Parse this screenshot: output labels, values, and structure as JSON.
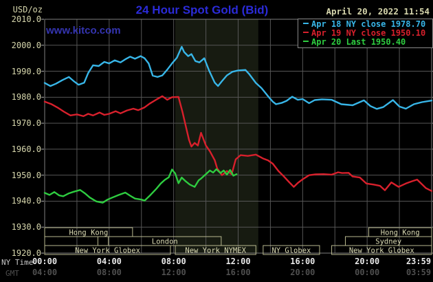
{
  "header": {
    "title": "24 Hour Spot Gold (Bid)",
    "datetime": "April 20, 2022 11:54",
    "watermark": "www.kitco.com"
  },
  "colors": {
    "background": "#000000",
    "title_blue": "#2b2bd8",
    "watermark_blue": "#3434b0",
    "axis_khaki": "#d6d6ac",
    "ny_tick_text": "#e8e8e8",
    "gmt_tick_text": "#4f4f4f",
    "axis_side_text": "#c8c8c8",
    "grid": "#565656",
    "frame": "#808080",
    "tick_mark": "#b0b0b0",
    "session_border": "#b9b98f",
    "session_text": "#dcdcb4",
    "nymex_band": "#171b11",
    "legend_border": "#8a8a8a",
    "apr18_cyan": "#38b6e8",
    "apr19_red": "#d8202c",
    "apr20_green": "#2ecc40"
  },
  "legend": {
    "entries": [
      {
        "text": "Apr 18 NY close 1978.70",
        "color": "#38b6e8"
      },
      {
        "text": "Apr 19 NY close 1950.10",
        "color": "#d8202c"
      },
      {
        "text": "Apr 20 Last 1950.40",
        "color": "#2ecc40"
      }
    ]
  },
  "y_axis": {
    "unit": "USD/oz",
    "ticks": [
      "2010.0",
      "2000.0",
      "1990.0",
      "1980.0",
      "1970.0",
      "1960.0",
      "1950.0",
      "1940.0",
      "1930.0",
      "1920.0"
    ]
  },
  "x_axis": {
    "ny_label": "NY Time",
    "gmt_label": "GMT",
    "ticks": [
      {
        "h": 0,
        "ny": "00:00",
        "gmt": "04:00"
      },
      {
        "h": 4,
        "ny": "04:00",
        "gmt": "08:00"
      },
      {
        "h": 8,
        "ny": "08:00",
        "gmt": "12:00"
      },
      {
        "h": 12,
        "ny": "12:00",
        "gmt": "16:00"
      },
      {
        "h": 16,
        "ny": "16:00",
        "gmt": "20:00"
      },
      {
        "h": 20,
        "ny": "20:00",
        "gmt": "00:00"
      },
      {
        "h": 24,
        "ny": "23:59",
        "gmt": "03:59"
      }
    ]
  },
  "sessions": {
    "rows": [
      [
        {
          "label": "Hong Kong",
          "start_h": 0,
          "end_h": 5.45
        },
        {
          "label": "Hong Kong",
          "start_h": 20.1,
          "end_h": 24
        }
      ],
      [
        {
          "label": "",
          "start_h": 0,
          "end_h": 3.3
        },
        {
          "label": "London",
          "start_h": 3.95,
          "end_h": 10.95
        },
        {
          "label": "Sydney",
          "start_h": 18.65,
          "end_h": 24
        }
      ],
      [
        {
          "label": "New York Globex",
          "start_h": 0,
          "end_h": 7.8
        },
        {
          "label": "New York NYMEX",
          "start_h": 8.1,
          "end_h": 13.1
        },
        {
          "label": "NY Globex",
          "start_h": 13.55,
          "end_h": 17.05
        },
        {
          "label": "New York Globex",
          "start_h": 17.8,
          "end_h": 24
        }
      ]
    ]
  },
  "chart_data": {
    "type": "line",
    "title": "24 Hour Spot Gold (Bid)",
    "xlabel": "NY Time",
    "ylabel": "USD/oz",
    "xlim": [
      0,
      24
    ],
    "ylim": [
      1920,
      2010
    ],
    "y_tick_values": [
      2010,
      2000,
      1990,
      1980,
      1970,
      1960,
      1950,
      1940,
      1930,
      1920
    ],
    "x_gridline_step_h": 2,
    "grid": true,
    "legend_position": "top-right",
    "nymex_band": {
      "start_h": 8.1,
      "end_h": 13.25
    },
    "series": [
      {
        "name": "Apr 18",
        "close": 1978.7,
        "color": "#38b6e8",
        "x": [
          0,
          0.35,
          0.7,
          1.1,
          1.5,
          1.8,
          2.1,
          2.45,
          2.7,
          3.0,
          3.35,
          3.7,
          4.0,
          4.35,
          4.7,
          5.0,
          5.3,
          5.6,
          5.95,
          6.2,
          6.45,
          6.7,
          7.0,
          7.3,
          7.6,
          7.9,
          8.2,
          8.5,
          8.65,
          8.9,
          9.1,
          9.35,
          9.6,
          9.9,
          10.2,
          10.55,
          10.75,
          11.0,
          11.3,
          11.65,
          12.0,
          12.45,
          12.7,
          13.1,
          13.45,
          13.85,
          14.15,
          14.35,
          14.7,
          15.0,
          15.35,
          15.7,
          16.0,
          16.4,
          16.75,
          17.2,
          17.8,
          18.4,
          19.1,
          19.8,
          20.2,
          20.6,
          21.0,
          21.6,
          22.0,
          22.4,
          22.9,
          23.4,
          24.0
        ],
        "values": [
          1985.5,
          1984.3,
          1985.2,
          1986.6,
          1987.8,
          1986.2,
          1984.8,
          1985.6,
          1989.3,
          1992.3,
          1992.0,
          1993.6,
          1993.0,
          1994.2,
          1993.4,
          1994.6,
          1995.6,
          1994.8,
          1995.8,
          1995.0,
          1993.0,
          1988.3,
          1987.8,
          1988.4,
          1990.6,
          1993.0,
          1995.2,
          1999.4,
          1997.4,
          1995.8,
          1996.6,
          1993.9,
          1993.4,
          1995.0,
          1990.2,
          1985.6,
          1984.3,
          1986.2,
          1988.4,
          1989.8,
          1990.3,
          1990.5,
          1988.8,
          1985.5,
          1983.5,
          1980.4,
          1978.3,
          1977.3,
          1977.8,
          1978.6,
          1980.2,
          1979.0,
          1979.3,
          1977.7,
          1978.9,
          1979.2,
          1979.0,
          1977.3,
          1976.9,
          1978.8,
          1976.6,
          1975.5,
          1976.2,
          1978.9,
          1976.4,
          1975.6,
          1977.3,
          1978.1,
          1978.7
        ]
      },
      {
        "name": "Apr 19",
        "close": 1950.1,
        "color": "#d8202c",
        "x": [
          0,
          0.4,
          0.8,
          1.2,
          1.6,
          2.0,
          2.4,
          2.7,
          3.0,
          3.4,
          3.7,
          4.0,
          4.4,
          4.7,
          5.1,
          5.5,
          5.8,
          6.2,
          6.5,
          6.9,
          7.3,
          7.6,
          7.9,
          8.3,
          8.55,
          8.75,
          8.95,
          9.1,
          9.3,
          9.5,
          9.7,
          10.0,
          10.25,
          10.55,
          10.7,
          11.0,
          11.3,
          11.6,
          11.85,
          12.15,
          12.6,
          13.1,
          13.55,
          13.85,
          14.15,
          14.5,
          14.85,
          15.15,
          15.45,
          15.7,
          16.0,
          16.4,
          16.8,
          17.3,
          17.8,
          18.2,
          18.45,
          18.85,
          19.1,
          19.55,
          19.95,
          20.4,
          20.8,
          21.1,
          21.5,
          21.95,
          22.4,
          22.8,
          23.1,
          23.4,
          23.65,
          24.0
        ],
        "values": [
          1978.3,
          1977.4,
          1976.0,
          1974.4,
          1973.0,
          1973.4,
          1972.7,
          1973.6,
          1973.0,
          1974.1,
          1973.2,
          1973.6,
          1974.6,
          1973.8,
          1974.9,
          1975.6,
          1975.0,
          1976.1,
          1977.5,
          1979.0,
          1980.4,
          1979.0,
          1980.0,
          1980.1,
          1974.2,
          1968.9,
          1963.6,
          1961.0,
          1962.4,
          1961.4,
          1966.3,
          1961.4,
          1959.2,
          1955.7,
          1952.6,
          1950.0,
          1951.6,
          1950.4,
          1956.1,
          1957.7,
          1957.4,
          1957.9,
          1956.4,
          1955.7,
          1954.4,
          1951.6,
          1949.4,
          1947.4,
          1945.5,
          1947.0,
          1948.4,
          1950.0,
          1950.3,
          1950.4,
          1950.2,
          1951.1,
          1950.8,
          1950.9,
          1949.5,
          1949.1,
          1946.8,
          1946.4,
          1945.9,
          1944.2,
          1947.2,
          1945.5,
          1946.8,
          1947.7,
          1948.3,
          1946.5,
          1945.0,
          1943.9
        ]
      },
      {
        "name": "Apr 20",
        "last": 1950.4,
        "color": "#2ecc40",
        "x": [
          0,
          0.3,
          0.6,
          0.9,
          1.15,
          1.5,
          1.8,
          2.2,
          2.5,
          2.8,
          3.2,
          3.6,
          3.9,
          4.2,
          4.6,
          5.0,
          5.3,
          5.6,
          6.0,
          6.2,
          6.5,
          6.9,
          7.2,
          7.45,
          7.7,
          7.9,
          8.1,
          8.3,
          8.5,
          8.75,
          9.0,
          9.3,
          9.55,
          9.7,
          10.0,
          10.25,
          10.45,
          10.65,
          10.9,
          11.1,
          11.3,
          11.5,
          11.7,
          11.9
        ],
        "values": [
          1943.2,
          1942.4,
          1943.5,
          1942.2,
          1941.9,
          1943.0,
          1943.6,
          1944.3,
          1943.0,
          1941.4,
          1939.9,
          1939.4,
          1940.6,
          1941.4,
          1942.4,
          1943.3,
          1942.1,
          1941.0,
          1940.6,
          1940.2,
          1942.0,
          1944.6,
          1946.8,
          1948.2,
          1949.2,
          1952.2,
          1950.6,
          1946.9,
          1949.1,
          1947.6,
          1946.4,
          1945.5,
          1948.0,
          1948.7,
          1950.4,
          1951.8,
          1951.0,
          1952.3,
          1950.8,
          1951.8,
          1950.2,
          1952.0,
          1949.8,
          1950.4
        ]
      }
    ]
  }
}
